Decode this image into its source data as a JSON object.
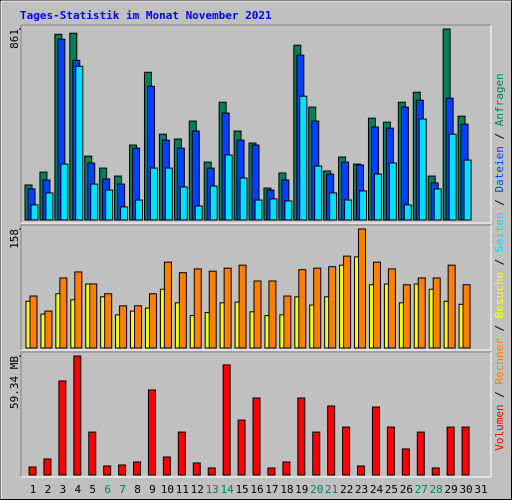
{
  "legend_separator": " / ",
  "chart_data": [
    {
      "type": "bar",
      "title": "Tages-Statistik im Monat November 2021",
      "ylim": [
        0,
        861
      ],
      "yticks": [
        861
      ],
      "series": [
        {
          "name": "Anfragen",
          "color": "#00805c",
          "values": [
            158,
            216,
            837,
            842,
            288,
            234,
            198,
            338,
            666,
            387,
            365,
            446,
            261,
            531,
            401,
            347,
            144,
            212,
            788,
            509,
            221,
            284,
            252,
            459,
            441,
            531,
            576,
            198,
            861,
            468,
            null
          ]
        },
        {
          "name": "Dateien",
          "color": "#0040ff",
          "values": [
            140,
            180,
            815,
            720,
            257,
            185,
            162,
            324,
            603,
            360,
            324,
            401,
            234,
            482,
            360,
            338,
            135,
            180,
            743,
            446,
            207,
            261,
            248,
            419,
            414,
            509,
            540,
            167,
            549,
            432,
            null
          ]
        },
        {
          "name": "Seiten",
          "color": "#00e0ff",
          "values": [
            68,
            122,
            252,
            693,
            162,
            135,
            59,
            90,
            234,
            234,
            149,
            63,
            153,
            293,
            189,
            90,
            95,
            86,
            558,
            243,
            122,
            90,
            131,
            207,
            257,
            68,
            455,
            140,
            387,
            270,
            null
          ]
        }
      ]
    },
    {
      "type": "bar",
      "ylim": [
        0,
        158
      ],
      "yticks": [
        158
      ],
      "series": [
        {
          "name": "Besuche",
          "color": "#ffff00",
          "values": [
            62,
            45,
            72,
            64,
            85,
            68,
            44,
            49,
            53,
            78,
            60,
            43,
            47,
            60,
            61,
            48,
            43,
            44,
            68,
            57,
            68,
            110,
            121,
            84,
            85,
            60,
            85,
            78,
            62,
            58,
            null
          ]
        },
        {
          "name": "Rechner",
          "color": "#ff8000",
          "values": [
            69,
            49,
            93,
            101,
            85,
            72,
            56,
            56,
            72,
            114,
            100,
            105,
            102,
            106,
            110,
            89,
            89,
            69,
            104,
            106,
            108,
            122,
            158,
            114,
            105,
            84,
            93,
            93,
            110,
            84,
            null
          ]
        }
      ]
    },
    {
      "type": "bar",
      "ylim": [
        0,
        59.34
      ],
      "yticks": [
        {
          "value": 59.34,
          "label": "59.34 MB"
        }
      ],
      "categories": [
        "1",
        "2",
        "3",
        "4",
        "5",
        "6",
        "7",
        "8",
        "9",
        "10",
        "11",
        "12",
        "13",
        "14",
        "15",
        "16",
        "17",
        "18",
        "19",
        "20",
        "21",
        "22",
        "23",
        "24",
        "25",
        "26",
        "27",
        "28",
        "29",
        "30",
        "31"
      ],
      "category_colors": [
        "#000000",
        "#000000",
        "#000000",
        "#000000",
        "#000000",
        "#00805c",
        "#00805c",
        "#000000",
        "#000000",
        "#000000",
        "#000000",
        "#000000",
        "#00805c",
        "#00805c",
        "#000000",
        "#000000",
        "#000000",
        "#000000",
        "#000000",
        "#00805c",
        "#00805c",
        "#000000",
        "#000000",
        "#000000",
        "#000000",
        "#000000",
        "#00805c",
        "#00805c",
        "#000000",
        "#000000",
        "#000000"
      ],
      "series": [
        {
          "name": "Volumen",
          "color": "#ff0000",
          "values": [
            4.0,
            8.0,
            46.9,
            59.34,
            21.4,
            4.5,
            5.0,
            6.5,
            42.4,
            9.0,
            21.4,
            6.0,
            3.5,
            54.9,
            27.4,
            38.4,
            3.5,
            6.5,
            38.4,
            21.4,
            34.4,
            23.9,
            4.5,
            33.9,
            23.9,
            13.0,
            21.4,
            3.5,
            23.9,
            23.9,
            null
          ]
        }
      ]
    }
  ]
}
